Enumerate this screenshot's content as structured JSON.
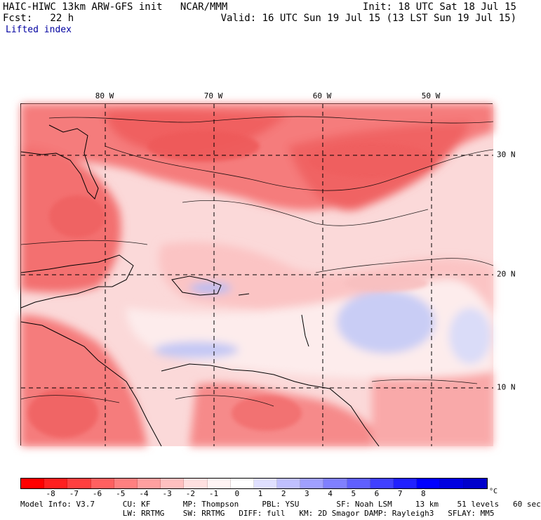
{
  "header": {
    "left_line1": "HAIC-HIWC 13km ARW-GFS init   NCAR/MMM",
    "left_line2": "Fcst:   22 h",
    "left_line3": "Lifted index",
    "right_line1": "Init: 18 UTC Sat 18 Jul 15",
    "right_line2": "Valid: 16 UTC Sun 19 Jul 15 (13 LST Sun 19 Jul 15)"
  },
  "map": {
    "lon_labels": [
      "80 W",
      "70 W",
      "60 W",
      "50 W"
    ],
    "lat_labels": [
      "30 N",
      "20 N",
      "10 N"
    ],
    "colors": {
      "ocean_base": "#fbd9d9",
      "strong_red": "#f46a6a",
      "medium_red": "#f79090",
      "light_red": "#f9b8b8",
      "white_zone": "#fdf3f3",
      "light_blue": "#d6d9f7",
      "medium_blue": "#a9aef0",
      "gridline": "#000000"
    }
  },
  "colorbar": {
    "unit": "°C",
    "tick_labels": [
      "-8",
      "-7",
      "-6",
      "-5",
      "-4",
      "-3",
      "-2",
      "-1",
      "0",
      "1",
      "2",
      "3",
      "4",
      "5",
      "6",
      "7",
      "8"
    ],
    "colors": [
      "#ff0000",
      "#ff2020",
      "#ff4040",
      "#ff6060",
      "#ff8080",
      "#ffa0a0",
      "#ffc0c0",
      "#ffe0e0",
      "#fff4f4",
      "#ffffff",
      "#e0e0ff",
      "#c0c0ff",
      "#a0a0ff",
      "#8080ff",
      "#6060ff",
      "#4040ff",
      "#2020ff",
      "#0000ff",
      "#0000e0",
      "#0000cc"
    ]
  },
  "model_info": {
    "line1": "Model Info: V3.7      CU: KF       MP: Thompson     PBL: YSU        SF: Noah LSM     13 km    51 levels   60 sec",
    "line2": "                      LW: RRTMG    SW: RRTMG   DIFF: full   KM: 2D Smagor DAMP: Rayleigh3   SFLAY: MM5"
  }
}
